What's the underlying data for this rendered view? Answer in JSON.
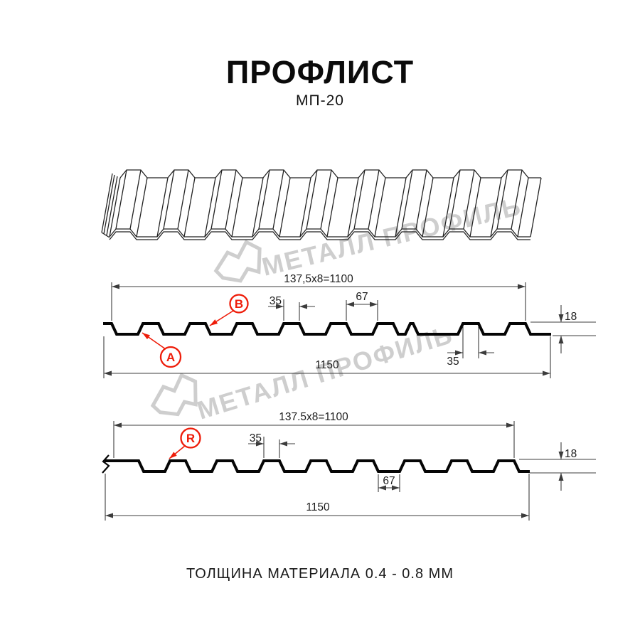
{
  "header": {
    "title": "ПРОФЛИСТ",
    "subtitle": "МП-20"
  },
  "watermark": {
    "brand": "МЕТАЛЛ ПРОФИЛЬ"
  },
  "profile_top": {
    "dim_total_pitch": "137,5x8=1100",
    "dim_rib_top_width": "35",
    "dim_valley_width": "67",
    "dim_height": "18",
    "dim_overall_width": "1150",
    "label_a": "A",
    "label_b": "B"
  },
  "profile_bottom": {
    "dim_total_pitch": "137.5x8=1100",
    "dim_rib_top_width": "35",
    "dim_valley_width": "67",
    "dim_height": "18",
    "dim_overall_width": "1150",
    "label_r": "R"
  },
  "footer": {
    "material_thickness": "ТОЛЩИНА МАТЕРИАЛА 0.4 - 0.8 ММ"
  },
  "colors": {
    "accent_red": "#ee1c09",
    "line_black": "#050505",
    "dim_gray": "#3c3c3c",
    "watermark_gray": "#c9c9c9"
  }
}
